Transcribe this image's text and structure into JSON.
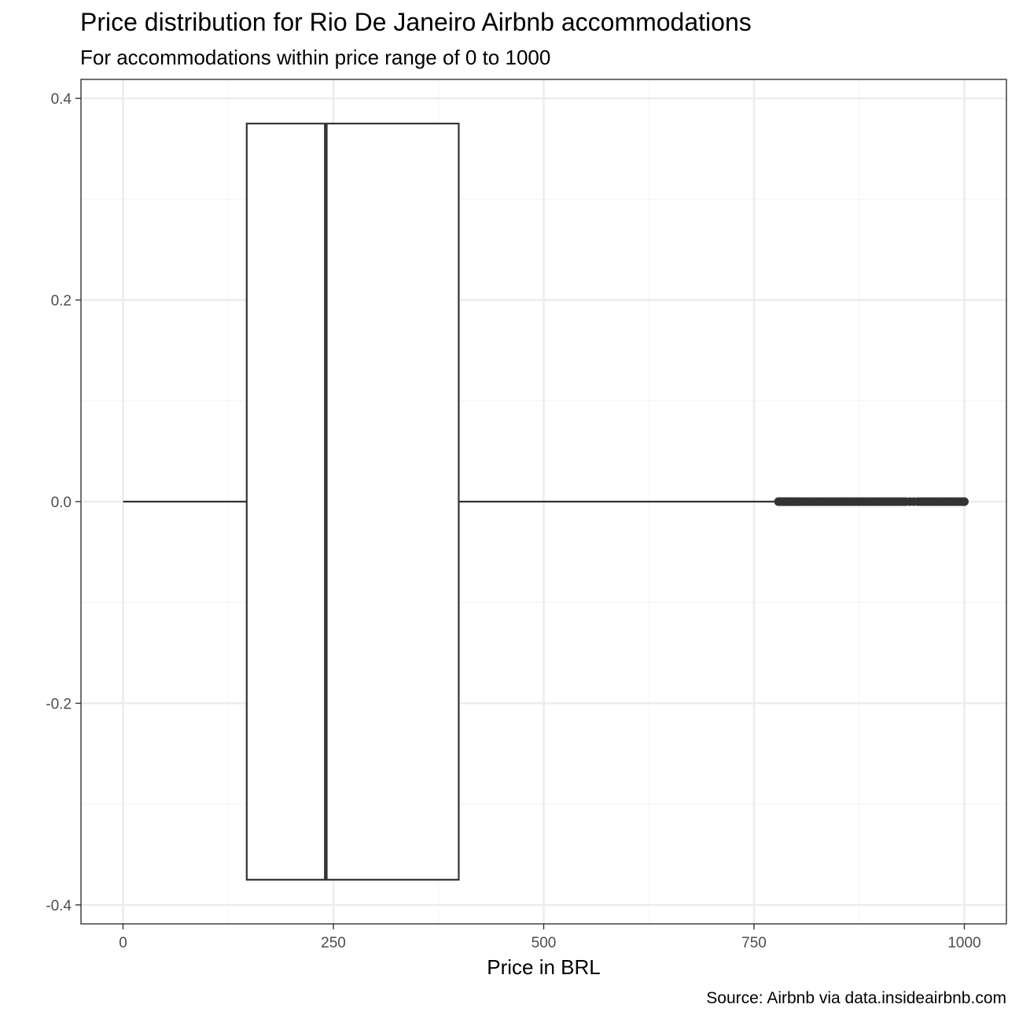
{
  "chart_data": {
    "type": "boxplot",
    "title": "Price distribution for Rio De Janeiro Airbnb accommodations",
    "subtitle": "For accommodations within price range of 0 to 1000",
    "caption": "Source: Airbnb via data.insideairbnb.com",
    "xlabel": "Price in BRL",
    "ylabel": "",
    "xlim": [
      -50,
      1050
    ],
    "ylim": [
      -0.4188,
      0.4188
    ],
    "x_ticks": [
      0,
      250,
      500,
      750,
      1000
    ],
    "x_tick_labels": [
      "0",
      "250",
      "500",
      "750",
      "1000"
    ],
    "y_ticks": [
      -0.4,
      -0.2,
      0.0,
      0.2,
      0.4
    ],
    "y_tick_labels": [
      "-0.4",
      "-0.2",
      "0.0",
      "0.2",
      "0.4"
    ],
    "grid": true,
    "box": {
      "whisker_low": 0,
      "q1": 147,
      "median": 241,
      "q3": 399,
      "whisker_high": 776,
      "y_center": 0,
      "half_width": 0.375
    },
    "outliers_range": [
      779,
      1000
    ],
    "outliers": [
      779,
      781,
      783,
      785,
      787,
      789,
      791,
      793,
      795,
      797,
      799,
      801,
      803,
      805,
      808,
      810,
      812,
      815,
      817,
      820,
      822,
      825,
      828,
      830,
      833,
      835,
      838,
      840,
      843,
      845,
      848,
      850,
      853,
      855,
      858,
      860,
      863,
      865,
      868,
      870,
      873,
      875,
      878,
      880,
      883,
      885,
      888,
      890,
      893,
      895,
      898,
      900,
      903,
      905,
      908,
      910,
      913,
      915,
      918,
      920,
      923,
      925,
      928,
      930,
      935,
      940,
      945,
      948,
      950,
      953,
      955,
      958,
      960,
      963,
      965,
      968,
      970,
      973,
      975,
      978,
      980,
      983,
      985,
      988,
      990,
      993,
      995,
      998,
      1000
    ],
    "colors": {
      "box_line": "#333333",
      "grid_major": "#ebebeb",
      "grid_minor": "#f5f5f5",
      "panel_border": "#333333",
      "tick_text": "#4d4d4d"
    }
  }
}
